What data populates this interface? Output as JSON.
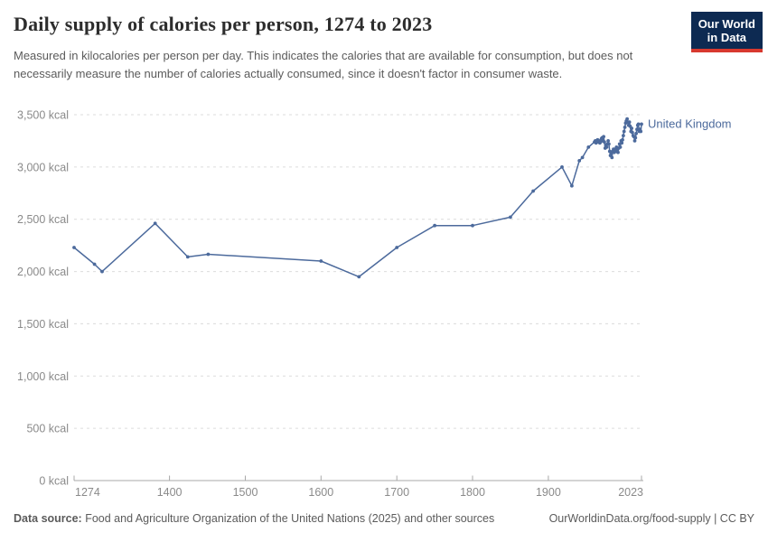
{
  "logo": {
    "line1": "Our World",
    "line2": "in Data",
    "bg_color": "#0d2a52",
    "bar_color": "#d8392f"
  },
  "footer": {
    "source_label": "Data source:",
    "source_text": " Food and Agriculture Organization of the United Nations (2025) and other sources",
    "credit": "OurWorldinData.org/food-supply | CC BY"
  },
  "chart_data": {
    "type": "line",
    "title": "Daily supply of calories per person, 1274 to 2023",
    "subtitle": "Measured in kilocalories per person per day. This indicates the calories that are available for consumption, but does not necessarily measure the number of calories actually consumed, since it doesn't factor in consumer waste.",
    "xlabel": "",
    "ylabel": "",
    "unit": "kcal",
    "xlim": [
      1274,
      2023
    ],
    "ylim": [
      0,
      3500
    ],
    "x_ticks": [
      1274,
      1400,
      1500,
      1600,
      1700,
      1800,
      1900,
      2023
    ],
    "x_tick_labels": [
      "1274",
      "1400",
      "1500",
      "1600",
      "1700",
      "1800",
      "1900",
      "2023"
    ],
    "y_ticks": [
      0,
      500,
      1000,
      1500,
      2000,
      2500,
      3000,
      3500
    ],
    "y_tick_labels": [
      "0 kcal",
      "500 kcal",
      "1,000 kcal",
      "1,500 kcal",
      "2,000 kcal",
      "2,500 kcal",
      "3,000 kcal",
      "3,500 kcal"
    ],
    "grid": "horizontal-dashed",
    "legend_position": "end-of-line-label",
    "axis_color": "#a8a8a8",
    "gridline_color": "#dcdcdc",
    "tick_label_color": "#8a8a8a",
    "series": [
      {
        "name": "United Kingdom",
        "color": "#4C6A9C",
        "points": [
          [
            1274,
            2230
          ],
          [
            1301,
            2070
          ],
          [
            1311,
            2000
          ],
          [
            1381,
            2460
          ],
          [
            1424,
            2140
          ],
          [
            1451,
            2165
          ],
          [
            1600,
            2100
          ],
          [
            1650,
            1950
          ],
          [
            1700,
            2230
          ],
          [
            1750,
            2440
          ],
          [
            1800,
            2440
          ],
          [
            1850,
            2520
          ],
          [
            1880,
            2770
          ],
          [
            1918,
            3000
          ],
          [
            1931,
            2820
          ],
          [
            1941,
            3060
          ],
          [
            1945,
            3090
          ],
          [
            1953,
            3190
          ],
          [
            1961,
            3240
          ],
          [
            1962,
            3250
          ],
          [
            1963,
            3230
          ],
          [
            1964,
            3250
          ],
          [
            1965,
            3260
          ],
          [
            1966,
            3240
          ],
          [
            1967,
            3250
          ],
          [
            1968,
            3230
          ],
          [
            1969,
            3240
          ],
          [
            1970,
            3270
          ],
          [
            1971,
            3280
          ],
          [
            1972,
            3250
          ],
          [
            1973,
            3290
          ],
          [
            1974,
            3240
          ],
          [
            1975,
            3180
          ],
          [
            1976,
            3210
          ],
          [
            1977,
            3190
          ],
          [
            1978,
            3220
          ],
          [
            1979,
            3250
          ],
          [
            1980,
            3220
          ],
          [
            1981,
            3150
          ],
          [
            1982,
            3110
          ],
          [
            1983,
            3130
          ],
          [
            1984,
            3090
          ],
          [
            1985,
            3150
          ],
          [
            1986,
            3170
          ],
          [
            1987,
            3140
          ],
          [
            1988,
            3170
          ],
          [
            1989,
            3150
          ],
          [
            1990,
            3190
          ],
          [
            1991,
            3160
          ],
          [
            1992,
            3140
          ],
          [
            1993,
            3180
          ],
          [
            1994,
            3220
          ],
          [
            1995,
            3190
          ],
          [
            1996,
            3250
          ],
          [
            1997,
            3230
          ],
          [
            1998,
            3260
          ],
          [
            1999,
            3300
          ],
          [
            2000,
            3340
          ],
          [
            2001,
            3380
          ],
          [
            2002,
            3420
          ],
          [
            2003,
            3440
          ],
          [
            2004,
            3460
          ],
          [
            2005,
            3430
          ],
          [
            2006,
            3400
          ],
          [
            2007,
            3430
          ],
          [
            2008,
            3390
          ],
          [
            2009,
            3340
          ],
          [
            2010,
            3370
          ],
          [
            2011,
            3330
          ],
          [
            2012,
            3300
          ],
          [
            2013,
            3290
          ],
          [
            2014,
            3250
          ],
          [
            2015,
            3280
          ],
          [
            2016,
            3320
          ],
          [
            2017,
            3360
          ],
          [
            2018,
            3400
          ],
          [
            2019,
            3410
          ],
          [
            2020,
            3340
          ],
          [
            2021,
            3360
          ],
          [
            2022,
            3340
          ],
          [
            2023,
            3410
          ]
        ]
      }
    ]
  }
}
